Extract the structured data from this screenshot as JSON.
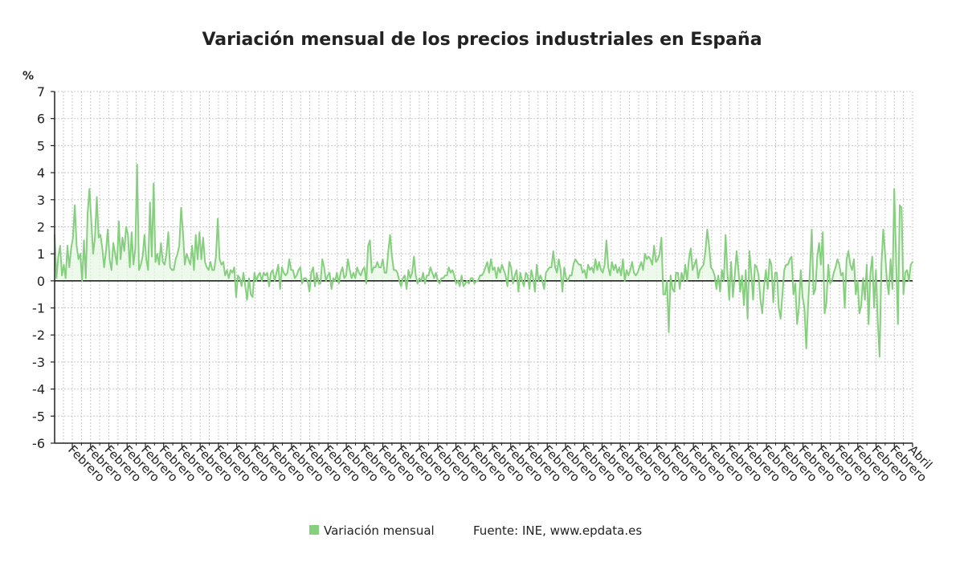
{
  "chart_data": {
    "type": "line",
    "title": "Variación mensual de los precios industriales en España",
    "ylabel": "%",
    "ylim": [
      -6,
      7
    ],
    "yticks": [
      "7",
      "6",
      "5",
      "4",
      "3",
      "2",
      "1",
      "0",
      "-1",
      "-2",
      "-3",
      "-4",
      "-5",
      "-6"
    ],
    "x_tick_labels": [
      "Febrero",
      "Febrero",
      "Febrero",
      "Febrero",
      "Febrero",
      "Febrero",
      "Febrero",
      "Febrero",
      "Febrero",
      "Febrero",
      "Febrero",
      "Febrero",
      "Febrero",
      "Febrero",
      "Febrero",
      "Febrero",
      "Febrero",
      "Febrero",
      "Febrero",
      "Febrero",
      "Febrero",
      "Febrero",
      "Febrero",
      "Febrero",
      "Febrero",
      "Febrero",
      "Febrero",
      "Febrero",
      "Febrero",
      "Febrero",
      "Febrero",
      "Febrero",
      "Febrero",
      "Febrero",
      "Febrero",
      "Febrero",
      "Febrero",
      "Febrero",
      "Febrero",
      "Febrero",
      "Febrero",
      "Febrero",
      "Febrero",
      "Febrero",
      "Febrero",
      "Febrero",
      "Abril"
    ],
    "grid": true,
    "legend_position": "bottom",
    "source": "Fuente: INE, www.epdata.es",
    "colors": {
      "line": "#86cf7f",
      "fill": "#e6f6e3",
      "grid": "#c8c8c8",
      "axis": "#222222",
      "text": "#222222"
    },
    "series": [
      {
        "name": "Variación mensual",
        "y": [
          1.7,
          0.1,
          0.9,
          1.3,
          0.2,
          0.6,
          0.1,
          1.3,
          0.5,
          1.2,
          1.6,
          2.8,
          1.3,
          0.8,
          1.0,
          0.0,
          1.5,
          0.1,
          2.5,
          3.4,
          2.2,
          1.0,
          1.6,
          3.1,
          1.6,
          1.7,
          1.2,
          0.5,
          1.1,
          1.9,
          0.8,
          0.4,
          1.4,
          1.0,
          0.6,
          2.2,
          0.8,
          1.6,
          1.1,
          2.0,
          1.7,
          0.5,
          1.8,
          0.6,
          1.2,
          4.3,
          0.4,
          0.6,
          0.9,
          1.7,
          0.8,
          0.4,
          2.9,
          0.9,
          3.6,
          0.7,
          1.0,
          0.6,
          1.4,
          0.7,
          0.6,
          1.0,
          1.8,
          0.5,
          0.4,
          0.4,
          0.8,
          1.0,
          1.3,
          2.7,
          1.8,
          0.6,
          1.0,
          0.8,
          0.6,
          1.3,
          0.4,
          1.7,
          0.8,
          1.8,
          0.8,
          1.6,
          0.7,
          0.5,
          0.4,
          0.7,
          0.4,
          0.4,
          0.9,
          2.3,
          0.8,
          0.6,
          0.7,
          0.2,
          0.4,
          0.1,
          0.4,
          0.3,
          0.5,
          -0.6,
          0.2,
          0.1,
          -0.2,
          0.3,
          -0.2,
          -0.7,
          0.1,
          -0.5,
          -0.6,
          0.3,
          0.0,
          0.2,
          0.3,
          0.0,
          0.3,
          0.2,
          0.3,
          -0.2,
          0.3,
          0.4,
          0.0,
          0.3,
          0.6,
          -0.3,
          0.5,
          0.3,
          0.2,
          0.3,
          0.8,
          0.4,
          0.4,
          0.1,
          0.2,
          0.4,
          0.5,
          -0.1,
          0.1,
          0.1,
          0.0,
          -0.4,
          0.3,
          0.5,
          -0.2,
          0.3,
          -0.1,
          -0.1,
          0.8,
          0.5,
          0.0,
          0.2,
          0.3,
          -0.3,
          0.1,
          0.0,
          0.3,
          -0.1,
          0.3,
          0.5,
          0.1,
          0.2,
          0.8,
          0.4,
          0.1,
          0.3,
          0.1,
          0.5,
          0.3,
          0.2,
          0.4,
          0.5,
          -0.1,
          1.3,
          1.5,
          0.3,
          0.5,
          0.5,
          0.7,
          0.5,
          0.5,
          0.8,
          0.3,
          0.3,
          1.1,
          1.7,
          0.9,
          0.4,
          0.4,
          0.3,
          0.0,
          -0.2,
          0.1,
          0.2,
          -0.3,
          0.4,
          0.1,
          0.3,
          0.9,
          0.2,
          -0.1,
          0.1,
          0.0,
          0.3,
          -0.1,
          0.2,
          0.2,
          0.5,
          0.3,
          0.1,
          0.3,
          0.0,
          -0.1,
          0.1,
          0.1,
          0.2,
          0.2,
          0.5,
          0.3,
          0.4,
          0.2,
          -0.1,
          0.0,
          -0.2,
          0.2,
          -0.2,
          -0.1,
          0.0,
          -0.1,
          0.1,
          0.1,
          -0.1,
          0.0,
          0.0,
          0.2,
          0.2,
          0.3,
          0.5,
          0.7,
          0.3,
          0.8,
          0.4,
          0.5,
          0.1,
          0.5,
          0.3,
          0.6,
          0.4,
          0.2,
          -0.2,
          0.7,
          0.5,
          -0.1,
          0.2,
          0.4,
          -0.4,
          0.3,
          0.0,
          -0.2,
          0.3,
          0.2,
          -0.3,
          0.4,
          0.1,
          -0.4,
          0.6,
          0.0,
          0.2,
          0.0,
          -0.3,
          0.3,
          0.4,
          0.5,
          0.5,
          1.1,
          0.5,
          0.3,
          0.8,
          0.4,
          -0.4,
          0.5,
          0.1,
          0.0,
          0.2,
          0.2,
          0.6,
          0.8,
          0.7,
          0.6,
          0.6,
          0.3,
          0.4,
          0.1,
          0.6,
          0.4,
          0.5,
          0.3,
          0.8,
          0.4,
          0.7,
          0.4,
          0.3,
          0.6,
          1.5,
          0.5,
          0.2,
          0.7,
          0.4,
          0.6,
          0.3,
          0.5,
          0.2,
          0.8,
          0.0,
          0.4,
          0.2,
          0.4,
          0.7,
          0.3,
          0.2,
          0.3,
          0.5,
          0.7,
          0.4,
          1.0,
          0.8,
          0.9,
          0.8,
          0.6,
          1.3,
          0.7,
          0.8,
          1.0,
          1.6,
          -0.5,
          -0.5,
          0.0,
          -1.9,
          0.2,
          -0.3,
          -0.4,
          0.3,
          0.3,
          -0.3,
          0.3,
          0.0,
          0.6,
          0.0,
          0.8,
          1.2,
          0.4,
          0.6,
          0.8,
          0.1,
          0.4,
          0.5,
          0.6,
          1.1,
          1.9,
          1.3,
          0.5,
          0.4,
          0.2,
          -0.3,
          0.2,
          -0.4,
          0.4,
          0.0,
          1.7,
          0.3,
          -0.7,
          0.7,
          -0.6,
          0.2,
          1.1,
          0.4,
          -0.4,
          0.2,
          -0.9,
          0.4,
          -1.4,
          1.1,
          0.3,
          -0.7,
          0.6,
          0.5,
          0.2,
          -0.7,
          -1.2,
          -0.2,
          0.4,
          -0.3,
          0.8,
          0.6,
          -0.8,
          0.3,
          0.3,
          -1.0,
          -1.4,
          -0.5,
          0.4,
          0.6,
          0.6,
          0.8,
          0.9,
          -0.5,
          -0.1,
          -1.6,
          -1.0,
          0.4,
          -0.6,
          -1.0,
          -2.5,
          -0.9,
          0.4,
          1.9,
          -0.5,
          -0.3,
          0.9,
          1.4,
          0.6,
          1.8,
          -1.2,
          -0.8,
          0.6,
          -0.1,
          0.0,
          0.3,
          0.5,
          0.8,
          0.6,
          0.2,
          0.3,
          -1.0,
          0.8,
          1.1,
          0.6,
          0.4,
          0.8,
          -0.5,
          0.0,
          -1.2,
          -0.9,
          0.1,
          -0.7,
          0.6,
          -1.6,
          0.3,
          0.9,
          -1.0,
          0.4,
          -1.5,
          -2.8,
          0.6,
          1.9,
          1.0,
          0.0,
          -0.5,
          0.8,
          -0.3,
          3.4,
          0.8,
          -1.6,
          2.8,
          2.7,
          -0.5,
          0.3,
          0.4,
          0.0,
          0.6,
          0.7
        ]
      }
    ]
  }
}
